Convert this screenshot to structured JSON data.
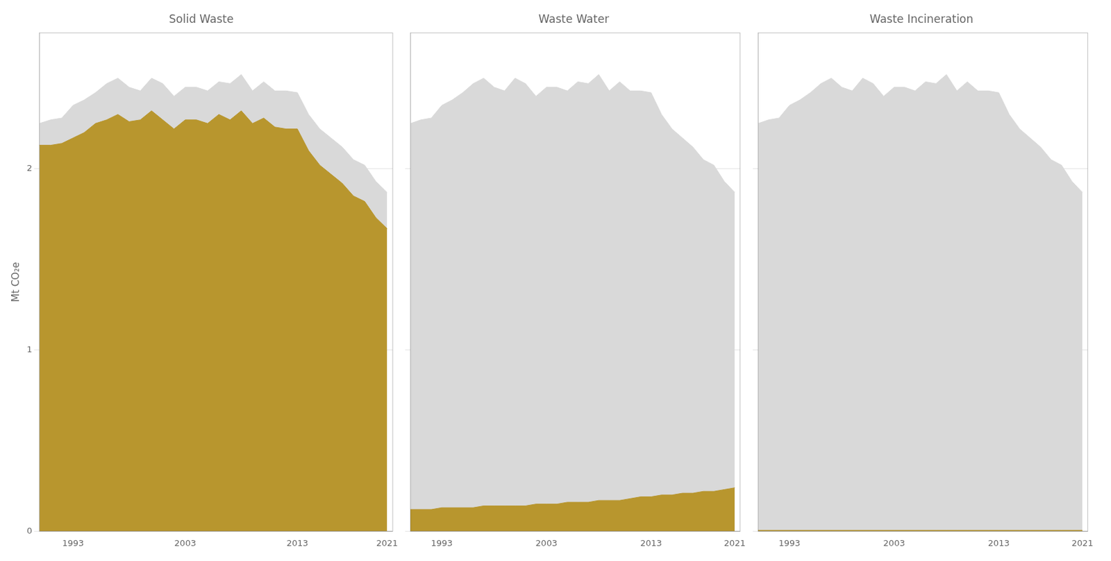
{
  "chart_data": [
    {
      "type": "area",
      "title": "Solid Waste",
      "ylabel": "Mt CO₂e",
      "x": [
        1990,
        1991,
        1992,
        1993,
        1994,
        1995,
        1996,
        1997,
        1998,
        1999,
        2000,
        2001,
        2002,
        2003,
        2004,
        2005,
        2006,
        2007,
        2008,
        2009,
        2010,
        2011,
        2012,
        2013,
        2014,
        2015,
        2016,
        2017,
        2018,
        2019,
        2020,
        2021
      ],
      "series": [
        {
          "color": "#d9d9d9",
          "values": [
            2.25,
            2.27,
            2.28,
            2.35,
            2.38,
            2.42,
            2.47,
            2.5,
            2.45,
            2.43,
            2.5,
            2.47,
            2.4,
            2.45,
            2.45,
            2.43,
            2.48,
            2.47,
            2.52,
            2.43,
            2.48,
            2.43,
            2.43,
            2.42,
            2.3,
            2.22,
            2.17,
            2.12,
            2.05,
            2.02,
            1.93,
            1.87
          ]
        },
        {
          "color": "#b8962e",
          "values": [
            2.13,
            2.13,
            2.14,
            2.17,
            2.2,
            2.25,
            2.27,
            2.3,
            2.26,
            2.27,
            2.32,
            2.27,
            2.22,
            2.27,
            2.27,
            2.25,
            2.3,
            2.27,
            2.32,
            2.25,
            2.28,
            2.23,
            2.22,
            2.22,
            2.1,
            2.02,
            1.97,
            1.92,
            1.85,
            1.82,
            1.73,
            1.67
          ]
        }
      ],
      "xlim": [
        1990,
        2021.5
      ],
      "xticks": [
        1993,
        2003,
        2013,
        2021
      ],
      "ylim": [
        0,
        2.75
      ],
      "yticks": [
        0,
        1,
        2
      ],
      "grid": "y"
    },
    {
      "type": "area",
      "title": "Waste Water",
      "x": [
        1990,
        1991,
        1992,
        1993,
        1994,
        1995,
        1996,
        1997,
        1998,
        1999,
        2000,
        2001,
        2002,
        2003,
        2004,
        2005,
        2006,
        2007,
        2008,
        2009,
        2010,
        2011,
        2012,
        2013,
        2014,
        2015,
        2016,
        2017,
        2018,
        2019,
        2020,
        2021
      ],
      "series": [
        {
          "color": "#d9d9d9",
          "values": [
            2.25,
            2.27,
            2.28,
            2.35,
            2.38,
            2.42,
            2.47,
            2.5,
            2.45,
            2.43,
            2.5,
            2.47,
            2.4,
            2.45,
            2.45,
            2.43,
            2.48,
            2.47,
            2.52,
            2.43,
            2.48,
            2.43,
            2.43,
            2.42,
            2.3,
            2.22,
            2.17,
            2.12,
            2.05,
            2.02,
            1.93,
            1.87
          ]
        },
        {
          "color": "#b8962e",
          "values": [
            0.12,
            0.12,
            0.12,
            0.13,
            0.13,
            0.13,
            0.13,
            0.14,
            0.14,
            0.14,
            0.14,
            0.14,
            0.15,
            0.15,
            0.15,
            0.16,
            0.16,
            0.16,
            0.17,
            0.17,
            0.17,
            0.18,
            0.19,
            0.19,
            0.2,
            0.2,
            0.21,
            0.21,
            0.22,
            0.22,
            0.23,
            0.24
          ]
        }
      ],
      "xlim": [
        1990,
        2021.5
      ],
      "xticks": [
        1993,
        2003,
        2013,
        2021
      ],
      "ylim": [
        0,
        2.75
      ],
      "yticks": [
        0,
        1,
        2
      ],
      "grid": "y",
      "tick_labels": "x"
    },
    {
      "type": "area",
      "title": "Waste Incineration",
      "x": [
        1990,
        1991,
        1992,
        1993,
        1994,
        1995,
        1996,
        1997,
        1998,
        1999,
        2000,
        2001,
        2002,
        2003,
        2004,
        2005,
        2006,
        2007,
        2008,
        2009,
        2010,
        2011,
        2012,
        2013,
        2014,
        2015,
        2016,
        2017,
        2018,
        2019,
        2020,
        2021
      ],
      "series": [
        {
          "color": "#d9d9d9",
          "values": [
            2.25,
            2.27,
            2.28,
            2.35,
            2.38,
            2.42,
            2.47,
            2.5,
            2.45,
            2.43,
            2.5,
            2.47,
            2.4,
            2.45,
            2.45,
            2.43,
            2.48,
            2.47,
            2.52,
            2.43,
            2.48,
            2.43,
            2.43,
            2.42,
            2.3,
            2.22,
            2.17,
            2.12,
            2.05,
            2.02,
            1.93,
            1.87
          ]
        },
        {
          "color": "#b8962e",
          "values": [
            0.005,
            0.005,
            0.005,
            0.005,
            0.005,
            0.005,
            0.005,
            0.005,
            0.005,
            0.005,
            0.005,
            0.005,
            0.005,
            0.005,
            0.005,
            0.005,
            0.005,
            0.005,
            0.005,
            0.005,
            0.005,
            0.005,
            0.005,
            0.005,
            0.005,
            0.005,
            0.005,
            0.005,
            0.005,
            0.005,
            0.005,
            0.005
          ]
        }
      ],
      "xlim": [
        1990,
        2021.5
      ],
      "xticks": [
        1993,
        2003,
        2013,
        2021
      ],
      "ylim": [
        0,
        2.75
      ],
      "yticks": [
        0,
        1,
        2
      ],
      "grid": "y",
      "tick_labels": "x"
    }
  ]
}
